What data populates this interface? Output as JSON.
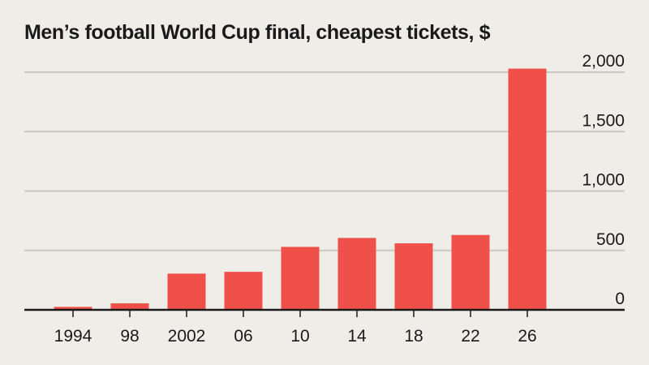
{
  "colors": {
    "bar": "#f0504a",
    "grid": "#c9c8c3",
    "axis": "#1a1a1a",
    "background": "#efede8"
  },
  "chart_data": {
    "type": "bar",
    "title": "Men’s football World Cup final, cheapest tickets, $",
    "xlabel": "",
    "ylabel": "",
    "categories": [
      "1994",
      "98",
      "2002",
      "06",
      "10",
      "14",
      "18",
      "22",
      "26"
    ],
    "values": [
      25,
      55,
      305,
      320,
      530,
      605,
      560,
      630,
      2030
    ],
    "ylim": [
      0,
      2000
    ],
    "yticks": [
      0,
      500,
      1000,
      1500,
      2000
    ],
    "ytick_labels": [
      "0",
      "500",
      "1,000",
      "1,500",
      "2,000"
    ],
    "grid": true,
    "y_axis_side": "right"
  }
}
